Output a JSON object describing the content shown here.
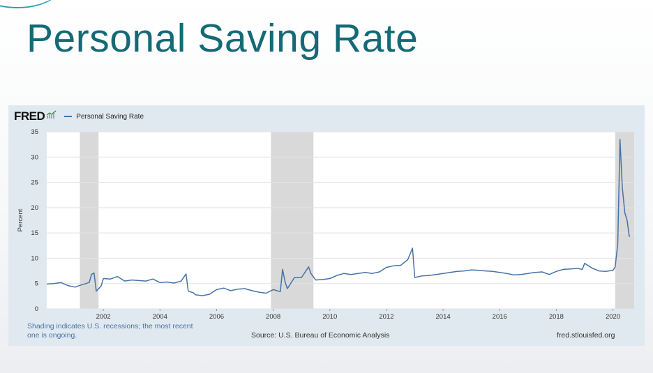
{
  "slide": {
    "title": "Personal Saving Rate"
  },
  "fred": {
    "logo": "FRED",
    "legend_series": "Personal Saving Rate",
    "footer_note": "Shading indicates U.S. recessions; the most recent one is ongoing.",
    "source": "Source: U.S. Bureau of Economic Analysis",
    "site": "fred.stlouisfed.org"
  },
  "colors": {
    "title": "#146a75",
    "line": "#4572a7",
    "recession": "#d9d9d9",
    "panel": "#e1e9f0"
  },
  "chart_data": {
    "type": "line",
    "title": "",
    "xlabel": "",
    "ylabel": "Percent",
    "xlim": [
      2000.0,
      2020.75
    ],
    "ylim": [
      0,
      35
    ],
    "y_ticks": [
      0,
      5,
      10,
      15,
      20,
      25,
      30,
      35
    ],
    "x_ticks": [
      2002,
      2004,
      2006,
      2008,
      2010,
      2012,
      2014,
      2016,
      2018,
      2020
    ],
    "grid": true,
    "legend": "top-left",
    "recessions": [
      [
        2001.17,
        2001.83
      ],
      [
        2007.92,
        2009.42
      ],
      [
        2020.08,
        2020.75
      ]
    ],
    "series": [
      {
        "name": "Personal Saving Rate",
        "x": [
          2000.0,
          2000.25,
          2000.5,
          2000.75,
          2001.0,
          2001.25,
          2001.5,
          2001.58,
          2001.67,
          2001.75,
          2001.92,
          2002.0,
          2002.25,
          2002.5,
          2002.75,
          2003.0,
          2003.25,
          2003.5,
          2003.75,
          2004.0,
          2004.25,
          2004.5,
          2004.75,
          2004.92,
          2005.0,
          2005.17,
          2005.25,
          2005.5,
          2005.75,
          2006.0,
          2006.25,
          2006.5,
          2006.75,
          2007.0,
          2007.25,
          2007.5,
          2007.75,
          2008.0,
          2008.25,
          2008.33,
          2008.42,
          2008.5,
          2008.75,
          2009.0,
          2009.25,
          2009.33,
          2009.5,
          2009.75,
          2010.0,
          2010.25,
          2010.5,
          2010.75,
          2011.0,
          2011.25,
          2011.5,
          2011.75,
          2012.0,
          2012.25,
          2012.5,
          2012.75,
          2012.92,
          2013.0,
          2013.25,
          2013.5,
          2013.75,
          2014.0,
          2014.25,
          2014.5,
          2014.75,
          2015.0,
          2015.25,
          2015.5,
          2015.75,
          2016.0,
          2016.25,
          2016.5,
          2016.75,
          2017.0,
          2017.25,
          2017.5,
          2017.75,
          2018.0,
          2018.25,
          2018.5,
          2018.75,
          2018.92,
          2019.0,
          2019.25,
          2019.5,
          2019.75,
          2020.0,
          2020.08,
          2020.17,
          2020.25,
          2020.33,
          2020.42,
          2020.5,
          2020.58
        ],
        "y": [
          4.9,
          5.0,
          5.2,
          4.6,
          4.3,
          4.8,
          5.2,
          6.8,
          7.1,
          3.5,
          4.5,
          6.0,
          5.9,
          6.4,
          5.5,
          5.7,
          5.6,
          5.5,
          5.9,
          5.2,
          5.3,
          5.1,
          5.5,
          6.9,
          3.5,
          3.2,
          2.8,
          2.6,
          2.9,
          3.8,
          4.1,
          3.6,
          3.9,
          4.0,
          3.6,
          3.3,
          3.1,
          3.8,
          3.4,
          7.8,
          5.3,
          4.0,
          6.2,
          6.2,
          8.3,
          7.0,
          5.7,
          5.8,
          6.0,
          6.6,
          7.0,
          6.8,
          7.0,
          7.2,
          7.0,
          7.3,
          8.2,
          8.5,
          8.6,
          9.7,
          12.0,
          6.2,
          6.5,
          6.6,
          6.8,
          7.0,
          7.2,
          7.4,
          7.5,
          7.7,
          7.6,
          7.5,
          7.4,
          7.2,
          7.0,
          6.7,
          6.8,
          7.0,
          7.2,
          7.3,
          6.8,
          7.4,
          7.8,
          7.9,
          8.0,
          7.8,
          9.0,
          8.1,
          7.5,
          7.4,
          7.6,
          8.3,
          12.9,
          33.5,
          24.0,
          19.0,
          17.5,
          14.2
        ]
      }
    ]
  }
}
